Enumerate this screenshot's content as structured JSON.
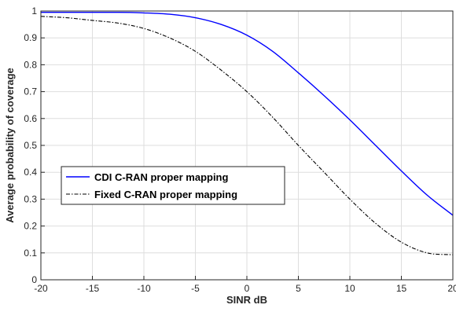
{
  "chart_data": {
    "type": "line",
    "xlabel": "SINR dB",
    "ylabel": "Average probability of coverage",
    "xlim": [
      -20,
      20
    ],
    "ylim": [
      0,
      1
    ],
    "xticks": [
      -20,
      -15,
      -10,
      -5,
      0,
      5,
      10,
      15,
      20
    ],
    "yticks": [
      0,
      0.1,
      0.2,
      0.3,
      0.4,
      0.5,
      0.6,
      0.7,
      0.8,
      0.9,
      1
    ],
    "grid": true,
    "legend_position": "center-left",
    "series": [
      {
        "name": "CDI C-RAN proper mapping",
        "color": "#0000ff",
        "style": "solid",
        "x": [
          -20,
          -17.5,
          -15,
          -12.5,
          -10,
          -7.5,
          -5,
          -2.5,
          0,
          2.5,
          5,
          7.5,
          10,
          12.5,
          15,
          17.5,
          20
        ],
        "y": [
          0.995,
          0.995,
          0.995,
          0.995,
          0.993,
          0.988,
          0.975,
          0.95,
          0.91,
          0.85,
          0.77,
          0.685,
          0.595,
          0.5,
          0.405,
          0.315,
          0.24
        ]
      },
      {
        "name": "Fixed C-RAN proper mapping",
        "color": "#000000",
        "style": "dashdot",
        "x": [
          -20,
          -17.5,
          -15,
          -12.5,
          -10,
          -7.5,
          -5,
          -2.5,
          0,
          2.5,
          5,
          7.5,
          10,
          12.5,
          15,
          17.5,
          20
        ],
        "y": [
          0.98,
          0.975,
          0.965,
          0.955,
          0.935,
          0.9,
          0.85,
          0.78,
          0.7,
          0.605,
          0.5,
          0.4,
          0.3,
          0.21,
          0.14,
          0.1,
          0.093
        ]
      }
    ]
  }
}
